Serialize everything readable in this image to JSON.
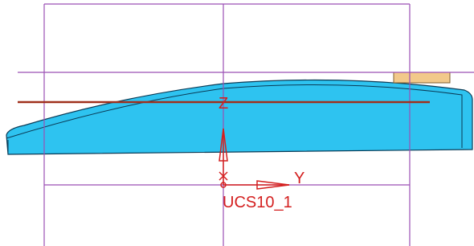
{
  "viewport": {
    "z_label": "Z",
    "y_label": "Y",
    "ucs_name": "UCS10_1"
  }
}
